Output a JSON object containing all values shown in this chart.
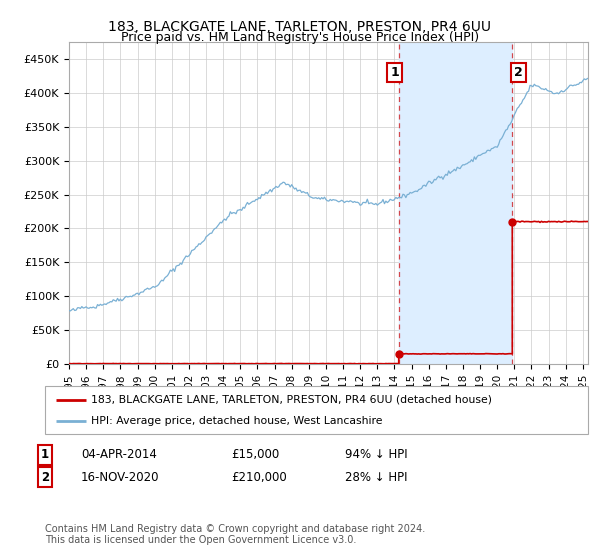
{
  "title": "183, BLACKGATE LANE, TARLETON, PRESTON, PR4 6UU",
  "subtitle": "Price paid vs. HM Land Registry's House Price Index (HPI)",
  "ylabel_ticks": [
    "£0",
    "£50K",
    "£100K",
    "£150K",
    "£200K",
    "£250K",
    "£300K",
    "£350K",
    "£400K",
    "£450K"
  ],
  "ytick_values": [
    0,
    50000,
    100000,
    150000,
    200000,
    250000,
    300000,
    350000,
    400000,
    450000
  ],
  "ylim": [
    0,
    475000
  ],
  "xlim_start": 1995.3,
  "xlim_end": 2025.3,
  "hpi_color": "#7ab0d4",
  "hpi_shade_color": "#ddeeff",
  "price_color": "#cc0000",
  "dashed_color": "#cc0000",
  "marker1_x": 2014.25,
  "marker1_y": 15000,
  "marker2_x": 2020.88,
  "marker2_y": 210000,
  "annotation1_label": "1",
  "annotation2_label": "2",
  "legend_house": "183, BLACKGATE LANE, TARLETON, PRESTON, PR4 6UU (detached house)",
  "legend_hpi": "HPI: Average price, detached house, West Lancashire",
  "note1_num": "1",
  "note1_date": "04-APR-2014",
  "note1_price": "£15,000",
  "note1_pct": "94% ↓ HPI",
  "note2_num": "2",
  "note2_date": "16-NOV-2020",
  "note2_price": "£210,000",
  "note2_pct": "28% ↓ HPI",
  "footer": "Contains HM Land Registry data © Crown copyright and database right 2024.\nThis data is licensed under the Open Government Licence v3.0.",
  "background_color": "#ffffff",
  "grid_color": "#cccccc"
}
